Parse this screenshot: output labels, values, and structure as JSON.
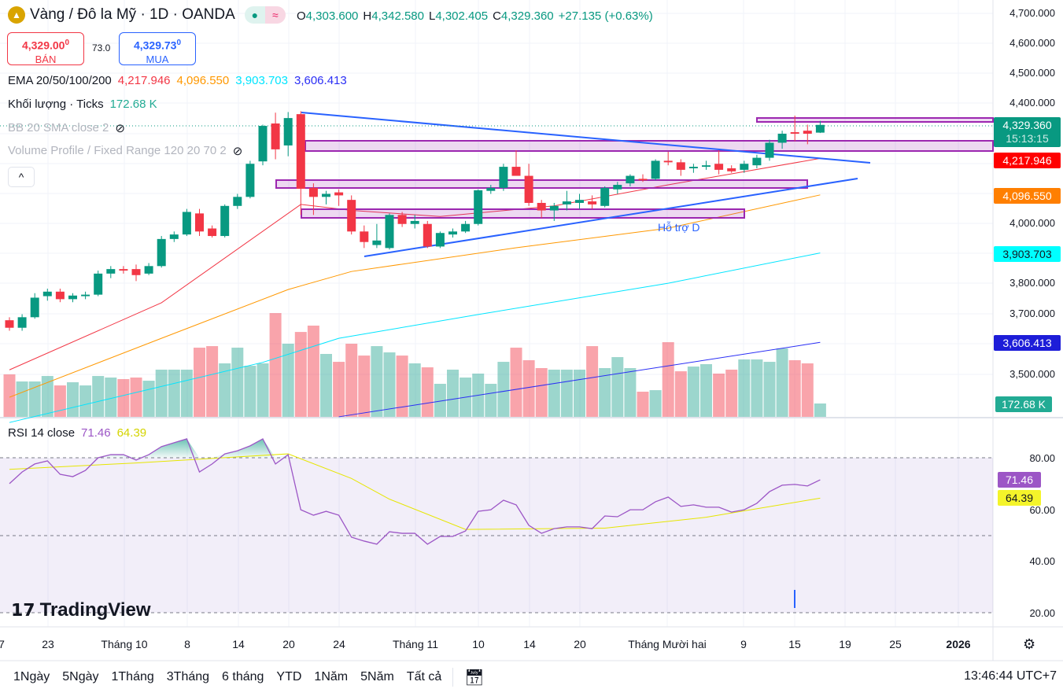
{
  "header": {
    "symbol_title": "Vàng / Đô la Mỹ · 1D · OANDA",
    "logo_icon": "gold-bars-icon",
    "ohlc": {
      "o_label": "O",
      "o": "4,303.600",
      "h_label": "H",
      "h": "4,342.580",
      "l_label": "L",
      "l": "4,302.405",
      "c_label": "C",
      "c": "4,329.360",
      "change": "+27.135 (+0.63%)"
    }
  },
  "trade": {
    "sell_price": "4,329.00",
    "sell_sup": "0",
    "sell_label": "BÁN",
    "spread": "73.0",
    "buy_price": "4,329.73",
    "buy_sup": "0",
    "buy_label": "MUA"
  },
  "legend": {
    "ema_label": "EMA 20/50/100/200",
    "ema20": "4,217.946",
    "ema50": "4,096.550",
    "ema100": "3,903.703",
    "ema200": "3,606.413",
    "volume_label": "Khối lượng · Ticks",
    "volume_value": "172.68 K",
    "bb_label": "BB 20 SMA close 2",
    "vp_label": "Volume Profile / Fixed Range 120 20 70 2",
    "collapse": "^"
  },
  "price_axis": {
    "labels": [
      "4,700.000",
      "4,600.000",
      "4,500.000",
      "4,400.000",
      "4,000.000",
      "3,800.000",
      "3,700.000",
      "3,500.000"
    ],
    "current": "4,329.360",
    "countdown": "15:13:15",
    "ema20_badge": "4,217.946",
    "ema50_badge": "4,096.550",
    "ema100_badge": "3,903.703",
    "ema200_badge": "3,606.413",
    "volume_badge": "172.68 K"
  },
  "rsi": {
    "label": "RSI 14 close",
    "rsi_value": "71.46",
    "ma_value": "64.39",
    "axis": [
      "80.00",
      "60.00",
      "40.00",
      "20.00"
    ],
    "badge_rsi": "71.46",
    "badge_ma": "64.39"
  },
  "annotation": {
    "support_label": "Hỗ trợ D"
  },
  "x_axis": {
    "labels": [
      "7",
      "23",
      "Tháng 10",
      "8",
      "14",
      "20",
      "24",
      "Tháng 11",
      "10",
      "14",
      "20",
      "Tháng Mười hai",
      "9",
      "15",
      "19",
      "25",
      "2026"
    ]
  },
  "toolbar": {
    "ranges": [
      "1Ngày",
      "5Ngày",
      "1Tháng",
      "3Tháng",
      "6 tháng",
      "YTD",
      "1Năm",
      "5Năm",
      "Tất cả"
    ],
    "clock": "13:46:44 UTC+7"
  },
  "branding": "TradingView",
  "colors": {
    "up": "#089981",
    "down": "#f23645",
    "ema20": "#f23645",
    "ema50": "#ff9800",
    "ema100": "#00e5ff",
    "ema200": "#2a2ef5",
    "rsi": "#9c56c6",
    "rsi_ma": "#e6e600"
  },
  "chart_data": {
    "type": "candlestick",
    "ohlc": [
      [
        3680,
        3690,
        3645,
        3655
      ],
      [
        3655,
        3700,
        3645,
        3690
      ],
      [
        3690,
        3770,
        3685,
        3755
      ],
      [
        3760,
        3785,
        3745,
        3775
      ],
      [
        3775,
        3785,
        3740,
        3750
      ],
      [
        3750,
        3770,
        3740,
        3762
      ],
      [
        3760,
        3775,
        3750,
        3765
      ],
      [
        3765,
        3845,
        3760,
        3835
      ],
      [
        3835,
        3860,
        3820,
        3850
      ],
      [
        3850,
        3860,
        3835,
        3845
      ],
      [
        3850,
        3865,
        3810,
        3830
      ],
      [
        3835,
        3870,
        3830,
        3860
      ],
      [
        3860,
        3960,
        3855,
        3950
      ],
      [
        3950,
        3975,
        3940,
        3965
      ],
      [
        3965,
        4050,
        3960,
        4040
      ],
      [
        4035,
        4050,
        3960,
        3975
      ],
      [
        3985,
        3995,
        3955,
        3960
      ],
      [
        3960,
        4065,
        3955,
        4060
      ],
      [
        4060,
        4100,
        4050,
        4090
      ],
      [
        4090,
        4210,
        4085,
        4200
      ],
      [
        4208,
        4330,
        4195,
        4326
      ],
      [
        4334,
        4370,
        4215,
        4248
      ],
      [
        4261,
        4372,
        4225,
        4352
      ],
      [
        4365,
        4375,
        4030,
        4117
      ],
      [
        4120,
        4135,
        4030,
        4090
      ],
      [
        4090,
        4110,
        4065,
        4100
      ],
      [
        4105,
        4115,
        4060,
        4095
      ],
      [
        4080,
        4095,
        3965,
        3975
      ],
      [
        3975,
        3995,
        3920,
        3940
      ],
      [
        3930,
        4000,
        3920,
        3945
      ],
      [
        3920,
        4035,
        3915,
        4030
      ],
      [
        4030,
        4040,
        3990,
        4000
      ],
      [
        4000,
        4030,
        3985,
        4010
      ],
      [
        4000,
        4010,
        3920,
        3925
      ],
      [
        3925,
        3975,
        3920,
        3970
      ],
      [
        3965,
        3985,
        3955,
        3975
      ],
      [
        3975,
        4010,
        3970,
        4000
      ],
      [
        4000,
        4115,
        3995,
        4112
      ],
      [
        4110,
        4130,
        4100,
        4120
      ],
      [
        4120,
        4200,
        4110,
        4190
      ],
      [
        4190,
        4245,
        4160,
        4160
      ],
      [
        4160,
        4200,
        4060,
        4070
      ],
      [
        4070,
        4080,
        4020,
        4045
      ],
      [
        4045,
        4070,
        4010,
        4060
      ],
      [
        4065,
        4110,
        4045,
        4075
      ],
      [
        4070,
        4100,
        4050,
        4080
      ],
      [
        4075,
        4095,
        4050,
        4065
      ],
      [
        4060,
        4125,
        4055,
        4120
      ],
      [
        4115,
        4140,
        4100,
        4130
      ],
      [
        4135,
        4165,
        4125,
        4160
      ],
      [
        4150,
        4165,
        4140,
        4145
      ],
      [
        4150,
        4215,
        4145,
        4210
      ],
      [
        4210,
        4240,
        4195,
        4205
      ],
      [
        4205,
        4215,
        4160,
        4180
      ],
      [
        4185,
        4200,
        4170,
        4190
      ],
      [
        4190,
        4210,
        4180,
        4195
      ],
      [
        4200,
        4245,
        4165,
        4180
      ],
      [
        4185,
        4195,
        4170,
        4175
      ],
      [
        4180,
        4210,
        4170,
        4200
      ],
      [
        4195,
        4230,
        4185,
        4220
      ],
      [
        4220,
        4280,
        4210,
        4270
      ],
      [
        4270,
        4310,
        4250,
        4300
      ],
      [
        4305,
        4360,
        4275,
        4300
      ],
      [
        4310,
        4330,
        4265,
        4300
      ],
      [
        4303.6,
        4342.58,
        4302.405,
        4329.36
      ]
    ],
    "volume_k": [
      549,
      457,
      457,
      528,
      406,
      447,
      406,
      528,
      508,
      488,
      508,
      467,
      610,
      610,
      610,
      894,
      914,
      691,
      894,
      660,
      691,
      1341,
      945,
      1097,
      1179,
      813,
      711,
      945,
      792,
      914,
      833,
      792,
      691,
      640,
      427,
      610,
      508,
      559,
      427,
      711,
      894,
      732,
      630,
      610,
      610,
      610,
      914,
      630,
      772,
      630,
      325,
      345,
      965,
      589,
      650,
      681,
      559,
      610,
      742,
      742,
      711,
      884,
      732,
      691,
      172.68
    ],
    "ema20": [
      [
        0,
        3515
      ],
      [
        12,
        3738
      ],
      [
        23,
        4065
      ],
      [
        27,
        4045
      ],
      [
        34,
        4025
      ],
      [
        43,
        4060
      ],
      [
        52,
        4130
      ],
      [
        64,
        4217.946
      ]
    ],
    "ema50": [
      [
        0,
        3424
      ],
      [
        12,
        3620
      ],
      [
        22,
        3782
      ],
      [
        27,
        3842
      ],
      [
        40,
        3921
      ],
      [
        52,
        3986
      ],
      [
        64,
        4096.55
      ]
    ],
    "ema100": [
      [
        0,
        3340
      ],
      [
        20,
        3540
      ],
      [
        26,
        3620
      ],
      [
        37,
        3699
      ],
      [
        52,
        3803
      ],
      [
        64,
        3903.703
      ]
    ],
    "ema200": [
      [
        26,
        3359
      ],
      [
        64,
        3606.413
      ]
    ],
    "rsi": [
      70.0,
      74.5,
      77.6,
      78.8,
      73.6,
      72.7,
      75.1,
      80,
      81.2,
      81.2,
      79.1,
      81.2,
      84.3,
      85.8,
      87.3,
      74.5,
      77.6,
      81.5,
      82.7,
      84.6,
      87.3,
      77.6,
      81.2,
      59.9,
      57.8,
      59.3,
      57.8,
      49.3,
      47.8,
      46.6,
      51.4,
      50.8,
      50.8,
      46.6,
      49.6,
      49.6,
      51.7,
      59.3,
      59.9,
      63.6,
      61.8,
      53.9,
      50.8,
      52.6,
      53.3,
      53.3,
      52.6,
      57.5,
      57.2,
      59.9,
      59.9,
      63.0,
      64.8,
      61.2,
      61.8,
      60.9,
      60.9,
      59.0,
      59.9,
      62.4,
      66.9,
      69.4,
      69.7,
      69.1,
      71.46
    ],
    "rsi_ma": [
      [
        0,
        75.5
      ],
      [
        10,
        78
      ],
      [
        22,
        81.5
      ],
      [
        27,
        72
      ],
      [
        30,
        64
      ],
      [
        36,
        52.3
      ],
      [
        47,
        52.8
      ],
      [
        55,
        57
      ],
      [
        58,
        59.5
      ],
      [
        64,
        64.39
      ]
    ],
    "price_range": [
      3420,
      4740
    ],
    "rsi_range": [
      10,
      95
    ]
  }
}
